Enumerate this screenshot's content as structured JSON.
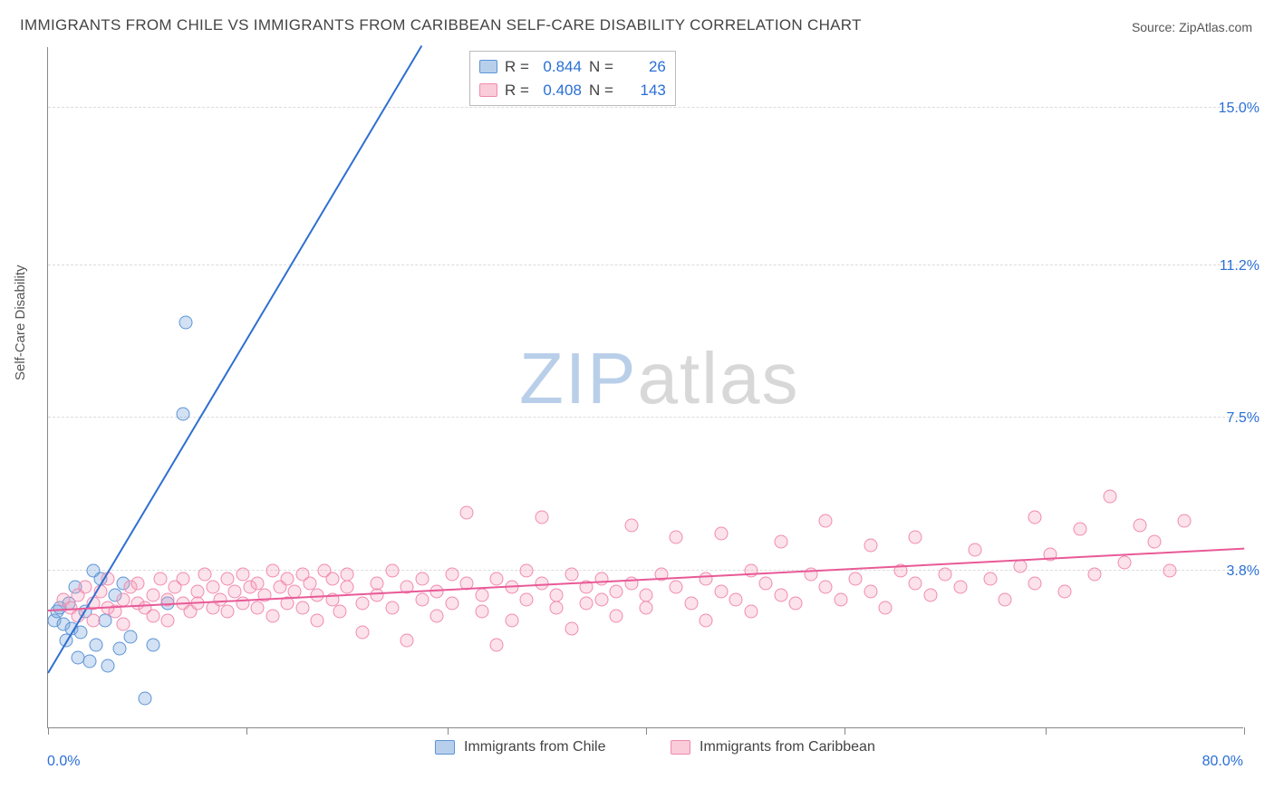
{
  "title": "IMMIGRANTS FROM CHILE VS IMMIGRANTS FROM CARIBBEAN SELF-CARE DISABILITY CORRELATION CHART",
  "source_label": "Source: ZipAtlas.com",
  "y_axis_label": "Self-Care Disability",
  "watermark": {
    "part1": "ZIP",
    "part2": "atlas"
  },
  "chart": {
    "type": "scatter",
    "background_color": "#ffffff",
    "grid_color": "#dcdcdc",
    "axis_color": "#888888",
    "xlim": [
      0,
      80
    ],
    "ylim": [
      0,
      16.5
    ],
    "x_ticks": [
      0,
      13.3,
      26.7,
      40,
      53.3,
      66.7,
      80
    ],
    "x_tick_labels": {
      "0": "0.0%",
      "80": "80.0%"
    },
    "x_label_color": "#2a6fd6",
    "y_grid_values": [
      3.8,
      7.5,
      11.2,
      15.0
    ],
    "y_tick_labels": [
      "3.8%",
      "7.5%",
      "11.2%",
      "15.0%"
    ],
    "y_label_color": "#2a6fd6",
    "series": [
      {
        "name": "Immigrants from Chile",
        "color_fill": "rgba(125,168,220,0.35)",
        "color_stroke": "#5c94d6",
        "marker_size": 15,
        "R": "0.844",
        "N": "26",
        "trend": {
          "x1": 0,
          "y1": 1.3,
          "x2": 25,
          "y2": 16.5,
          "color": "#2f6fd0",
          "width": 2
        },
        "points": [
          [
            0.4,
            2.6
          ],
          [
            0.6,
            2.8
          ],
          [
            0.8,
            2.9
          ],
          [
            1.0,
            2.5
          ],
          [
            1.2,
            2.1
          ],
          [
            1.4,
            3.0
          ],
          [
            1.6,
            2.4
          ],
          [
            1.8,
            3.4
          ],
          [
            2.0,
            1.7
          ],
          [
            2.2,
            2.3
          ],
          [
            2.5,
            2.8
          ],
          [
            2.8,
            1.6
          ],
          [
            3.0,
            3.8
          ],
          [
            3.2,
            2.0
          ],
          [
            3.5,
            3.6
          ],
          [
            3.8,
            2.6
          ],
          [
            4.0,
            1.5
          ],
          [
            4.5,
            3.2
          ],
          [
            4.8,
            1.9
          ],
          [
            5.0,
            3.5
          ],
          [
            5.5,
            2.2
          ],
          [
            6.5,
            0.7
          ],
          [
            7.0,
            2.0
          ],
          [
            8.0,
            3.0
          ],
          [
            9.0,
            7.6
          ],
          [
            9.2,
            9.8
          ]
        ]
      },
      {
        "name": "Immigrants from Caribbean",
        "color_fill": "rgba(245,160,185,0.30)",
        "color_stroke": "#f18ab0",
        "marker_size": 15,
        "R": "0.408",
        "N": "143",
        "trend": {
          "x1": 0,
          "y1": 2.8,
          "x2": 80,
          "y2": 4.3,
          "color": "#e85a97",
          "width": 2
        },
        "points": [
          [
            1,
            3.1
          ],
          [
            1.5,
            2.9
          ],
          [
            2,
            2.7
          ],
          [
            2,
            3.2
          ],
          [
            2.5,
            3.4
          ],
          [
            3,
            2.6
          ],
          [
            3,
            3.0
          ],
          [
            3.5,
            3.3
          ],
          [
            4,
            2.9
          ],
          [
            4,
            3.6
          ],
          [
            4.5,
            2.8
          ],
          [
            5,
            3.1
          ],
          [
            5,
            2.5
          ],
          [
            5.5,
            3.4
          ],
          [
            6,
            3.0
          ],
          [
            6,
            3.5
          ],
          [
            6.5,
            2.9
          ],
          [
            7,
            3.2
          ],
          [
            7,
            2.7
          ],
          [
            7.5,
            3.6
          ],
          [
            8,
            3.1
          ],
          [
            8,
            2.6
          ],
          [
            8.5,
            3.4
          ],
          [
            9,
            3.0
          ],
          [
            9,
            3.6
          ],
          [
            9.5,
            2.8
          ],
          [
            10,
            3.3
          ],
          [
            10,
            3.0
          ],
          [
            10.5,
            3.7
          ],
          [
            11,
            2.9
          ],
          [
            11,
            3.4
          ],
          [
            11.5,
            3.1
          ],
          [
            12,
            3.6
          ],
          [
            12,
            2.8
          ],
          [
            12.5,
            3.3
          ],
          [
            13,
            3.7
          ],
          [
            13,
            3.0
          ],
          [
            13.5,
            3.4
          ],
          [
            14,
            2.9
          ],
          [
            14,
            3.5
          ],
          [
            14.5,
            3.2
          ],
          [
            15,
            3.8
          ],
          [
            15,
            2.7
          ],
          [
            15.5,
            3.4
          ],
          [
            16,
            3.6
          ],
          [
            16,
            3.0
          ],
          [
            16.5,
            3.3
          ],
          [
            17,
            3.7
          ],
          [
            17,
            2.9
          ],
          [
            17.5,
            3.5
          ],
          [
            18,
            3.2
          ],
          [
            18,
            2.6
          ],
          [
            18.5,
            3.8
          ],
          [
            19,
            3.1
          ],
          [
            19,
            3.6
          ],
          [
            19.5,
            2.8
          ],
          [
            20,
            3.4
          ],
          [
            20,
            3.7
          ],
          [
            21,
            3.0
          ],
          [
            21,
            2.3
          ],
          [
            22,
            3.5
          ],
          [
            22,
            3.2
          ],
          [
            23,
            3.8
          ],
          [
            23,
            2.9
          ],
          [
            24,
            3.4
          ],
          [
            24,
            2.1
          ],
          [
            25,
            3.6
          ],
          [
            25,
            3.1
          ],
          [
            26,
            3.3
          ],
          [
            26,
            2.7
          ],
          [
            27,
            3.7
          ],
          [
            27,
            3.0
          ],
          [
            28,
            3.5
          ],
          [
            28,
            5.2
          ],
          [
            29,
            3.2
          ],
          [
            29,
            2.8
          ],
          [
            30,
            3.6
          ],
          [
            30,
            2.0
          ],
          [
            31,
            3.4
          ],
          [
            31,
            2.6
          ],
          [
            32,
            3.8
          ],
          [
            32,
            3.1
          ],
          [
            33,
            3.5
          ],
          [
            33,
            5.1
          ],
          [
            34,
            3.2
          ],
          [
            34,
            2.9
          ],
          [
            35,
            3.7
          ],
          [
            35,
            2.4
          ],
          [
            36,
            3.4
          ],
          [
            36,
            3.0
          ],
          [
            37,
            3.6
          ],
          [
            37,
            3.1
          ],
          [
            38,
            3.3
          ],
          [
            38,
            2.7
          ],
          [
            39,
            4.9
          ],
          [
            39,
            3.5
          ],
          [
            40,
            3.2
          ],
          [
            40,
            2.9
          ],
          [
            41,
            3.7
          ],
          [
            42,
            3.4
          ],
          [
            42,
            4.6
          ],
          [
            43,
            3.0
          ],
          [
            44,
            3.6
          ],
          [
            44,
            2.6
          ],
          [
            45,
            3.3
          ],
          [
            45,
            4.7
          ],
          [
            46,
            3.1
          ],
          [
            47,
            3.8
          ],
          [
            47,
            2.8
          ],
          [
            48,
            3.5
          ],
          [
            49,
            3.2
          ],
          [
            49,
            4.5
          ],
          [
            50,
            3.0
          ],
          [
            51,
            3.7
          ],
          [
            52,
            3.4
          ],
          [
            52,
            5.0
          ],
          [
            53,
            3.1
          ],
          [
            54,
            3.6
          ],
          [
            55,
            3.3
          ],
          [
            55,
            4.4
          ],
          [
            56,
            2.9
          ],
          [
            57,
            3.8
          ],
          [
            58,
            3.5
          ],
          [
            58,
            4.6
          ],
          [
            59,
            3.2
          ],
          [
            60,
            3.7
          ],
          [
            61,
            3.4
          ],
          [
            62,
            4.3
          ],
          [
            63,
            3.6
          ],
          [
            64,
            3.1
          ],
          [
            65,
            3.9
          ],
          [
            66,
            3.5
          ],
          [
            66,
            5.1
          ],
          [
            67,
            4.2
          ],
          [
            68,
            3.3
          ],
          [
            69,
            4.8
          ],
          [
            70,
            3.7
          ],
          [
            71,
            5.6
          ],
          [
            72,
            4.0
          ],
          [
            73,
            4.9
          ],
          [
            74,
            4.5
          ],
          [
            75,
            3.8
          ],
          [
            76,
            5.0
          ]
        ]
      }
    ]
  },
  "legend_top": {
    "rows": [
      {
        "swatch": "blue",
        "r_label": "R =",
        "r_val": "0.844",
        "n_label": "N =",
        "n_val": "26"
      },
      {
        "swatch": "pink",
        "r_label": "R =",
        "r_val": "0.408",
        "n_label": "N =",
        "n_val": "143"
      }
    ]
  },
  "legend_bottom": [
    {
      "swatch": "blue",
      "label": "Immigrants from Chile"
    },
    {
      "swatch": "pink",
      "label": "Immigrants from Caribbean"
    }
  ]
}
